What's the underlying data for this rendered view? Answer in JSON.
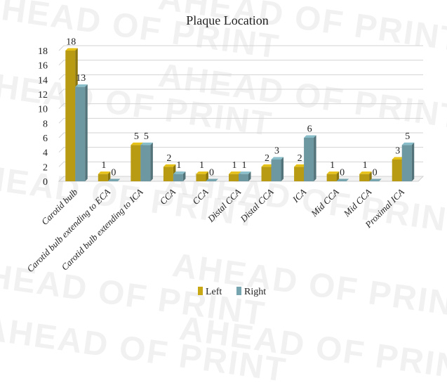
{
  "watermark": "AHEAD OF PRINT",
  "chart_data": {
    "type": "bar",
    "title": "Plaque Location",
    "xlabel": "",
    "ylabel": "",
    "ylim": [
      0,
      18
    ],
    "yticks": [
      0,
      2,
      4,
      6,
      8,
      10,
      12,
      14,
      16,
      18
    ],
    "grid": true,
    "legend_position": "bottom",
    "categories": [
      "Carotid bulb",
      "Carotid bulb extending to ECA",
      "Carotid bulb extending to ICA",
      "CCA",
      "CCA",
      "Distal CCA",
      "Distal CCA",
      "ICA",
      "Mid CCA",
      "Mid CCA",
      "Proximal ICA"
    ],
    "series": [
      {
        "name": "Left",
        "color": "#c8a814",
        "values": [
          18,
          1,
          5,
          2,
          1,
          1,
          2,
          2,
          1,
          1,
          3
        ]
      },
      {
        "name": "Right",
        "color": "#76a5af",
        "values": [
          13,
          0,
          5,
          1,
          0,
          1,
          3,
          6,
          0,
          0,
          5
        ]
      }
    ]
  }
}
